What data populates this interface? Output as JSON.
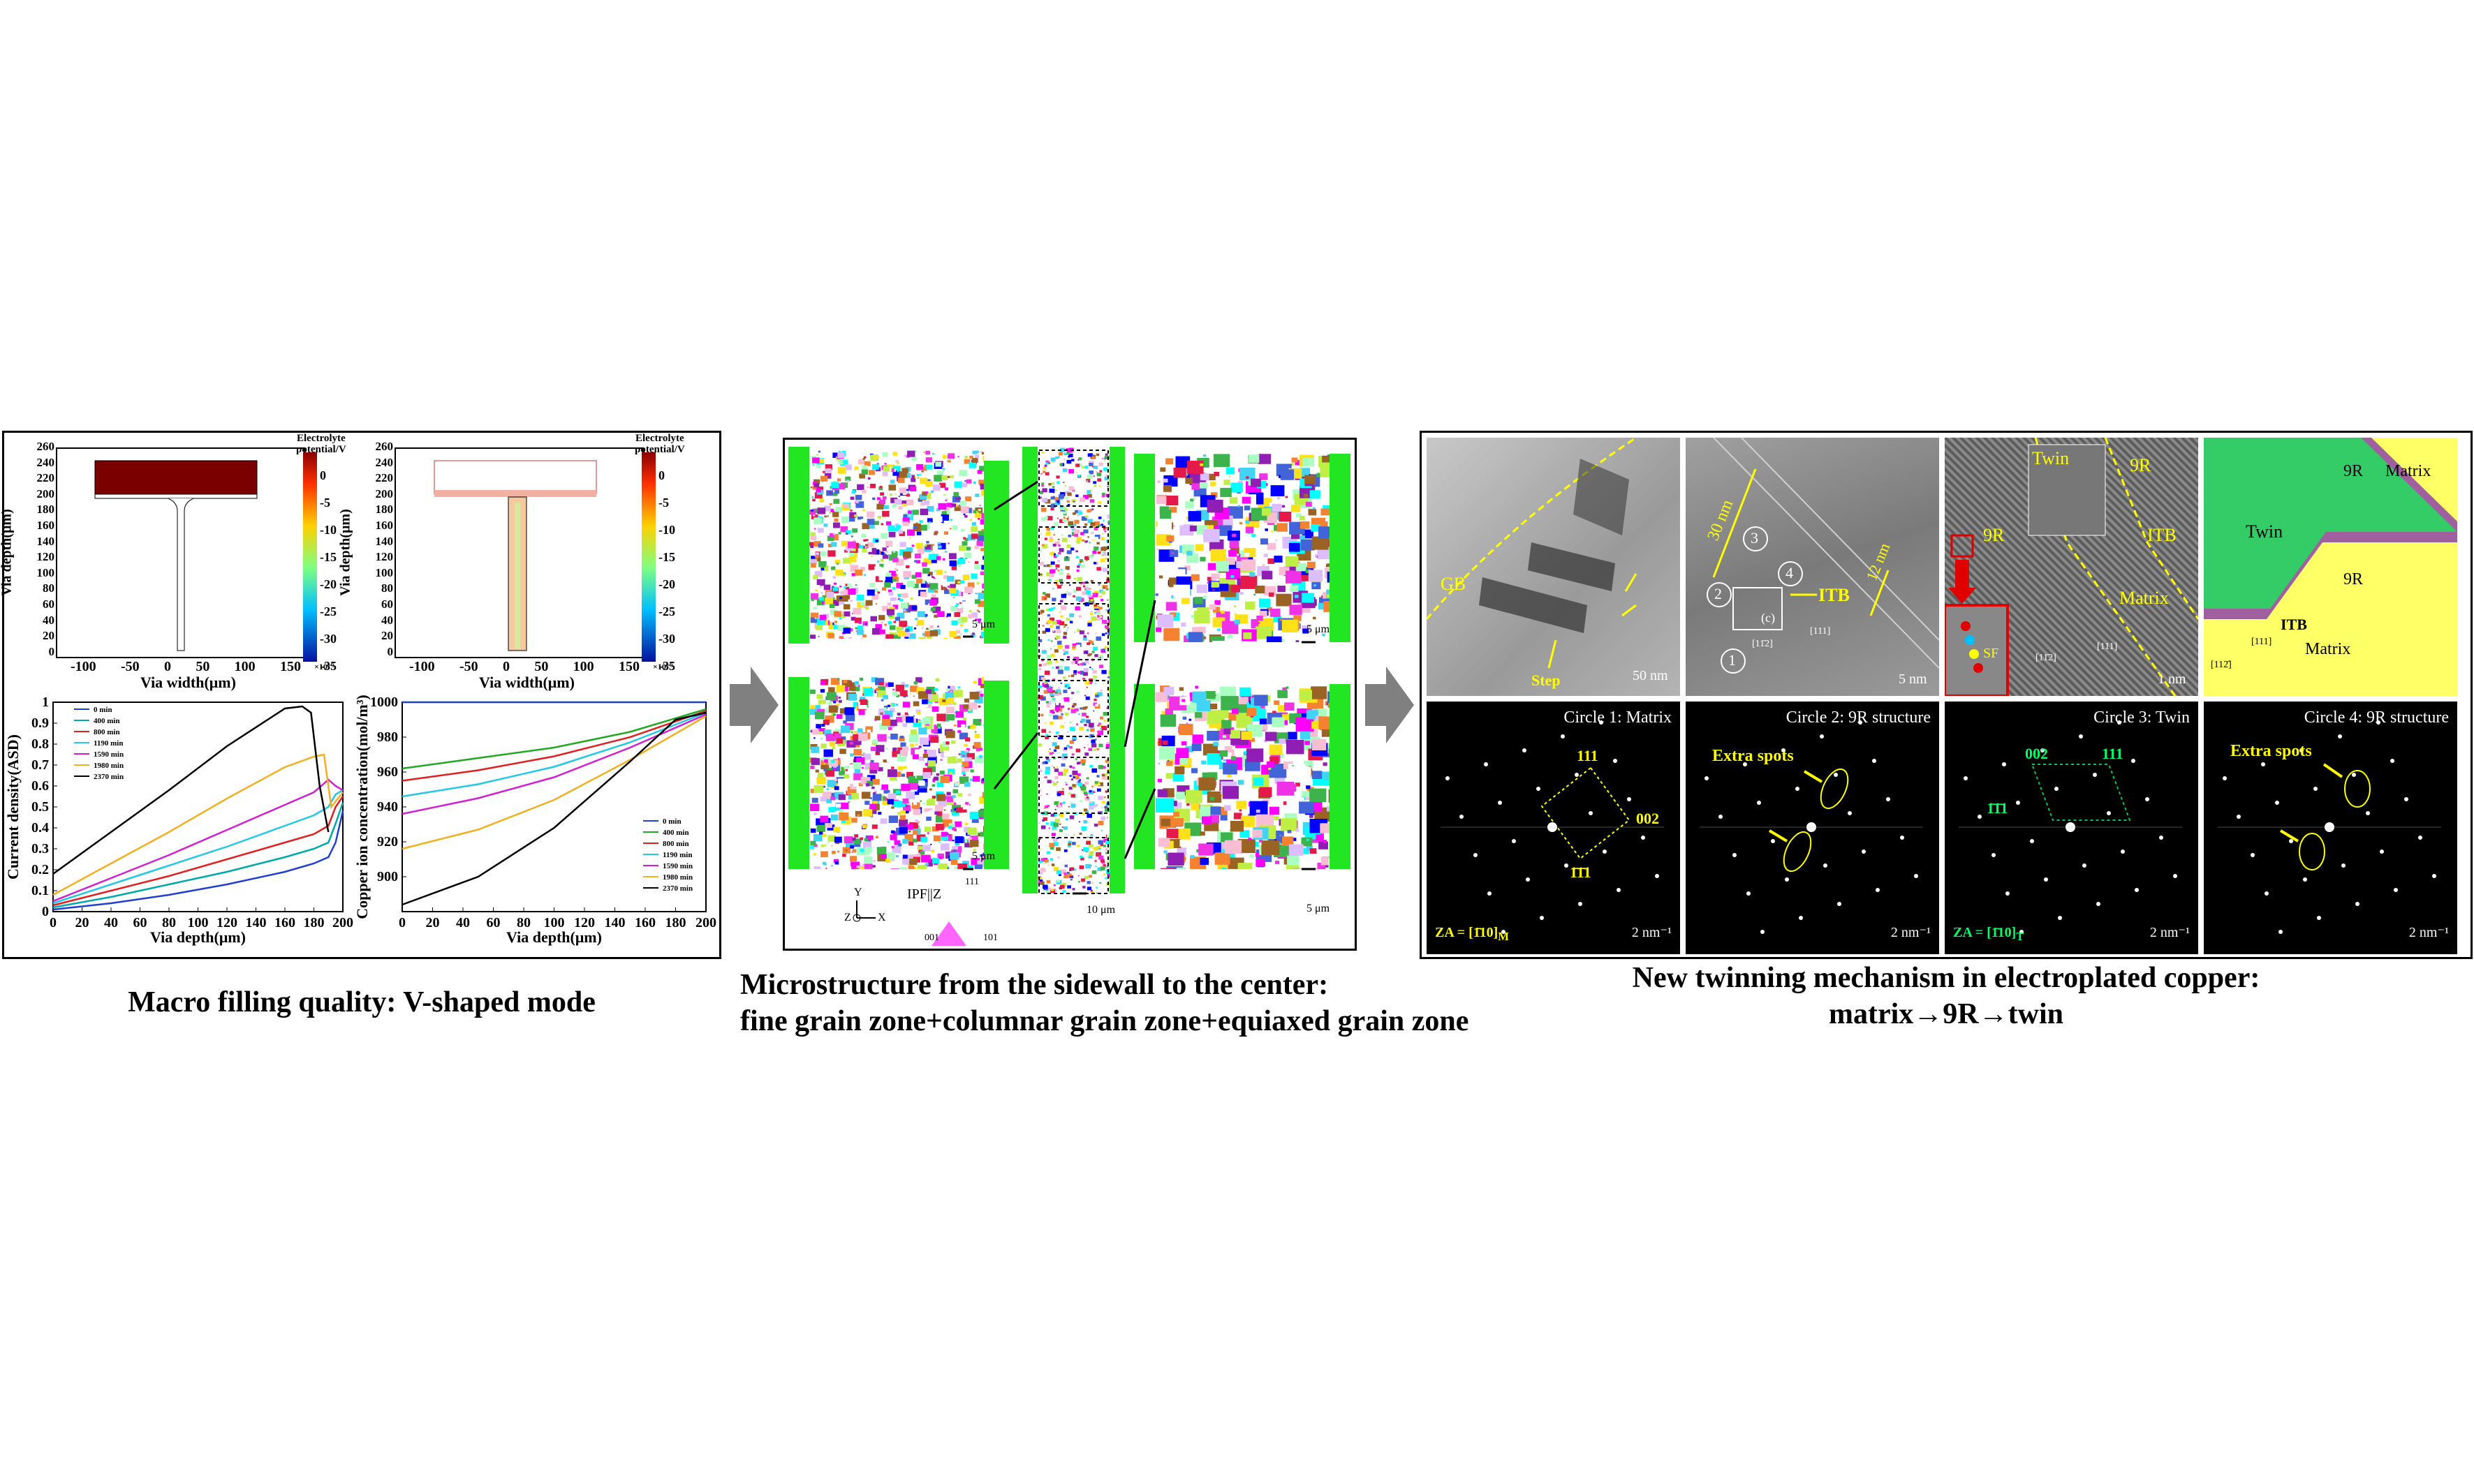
{
  "captions": {
    "left": "Macro filling quality: V-shaped mode",
    "middle_line1": "Microstructure from the sidewall to the center:",
    "middle_line2": "fine grain zone+columnar grain zone+equiaxed grain zone",
    "right_line1": "New twinning mechanism in electroplated copper:",
    "right_line2": "matrix→9R→twin"
  },
  "colors": {
    "arrow_gray": "#808080",
    "ebsd_green": "#22e622",
    "annotation_yellow": "#ffff00",
    "matrix_yellow": "#ffff66",
    "twin_green": "#33cc66",
    "layer_purple": "#a060a0",
    "fft_green": "#00ff66"
  },
  "left_panel": {
    "contour": {
      "colorbar_title_line1": "Electrolyte",
      "colorbar_title_line2": "potential/V",
      "colorbar_ticks": [
        "0",
        "-5",
        "-10",
        "-15",
        "-20",
        "-25",
        "-30",
        "-35"
      ],
      "colorbar_exp": "×10⁻³",
      "ylabel": "Via depth(μm)",
      "xlabel": "Via width(μm)",
      "yticks": [
        "260",
        "240",
        "220",
        "200",
        "180",
        "160",
        "140",
        "120",
        "100",
        "80",
        "60",
        "40",
        "20",
        "0"
      ],
      "xticks_a": [
        "-100",
        "-50",
        "0",
        "50",
        "100",
        "150"
      ],
      "xticks_b": [
        "-100",
        "-50",
        "0",
        "50",
        "100",
        "150"
      ]
    },
    "chart_data": [
      {
        "type": "line",
        "title": "",
        "xlabel": "Via depth(μm)",
        "ylabel": "Current density(ASD)",
        "xlim": [
          0,
          200
        ],
        "ylim": [
          0,
          1
        ],
        "xticks": [
          "0",
          "20",
          "40",
          "60",
          "80",
          "100",
          "120",
          "140",
          "160",
          "180",
          "200"
        ],
        "yticks": [
          "0",
          "0.1",
          "0.2",
          "0.3",
          "0.4",
          "0.5",
          "0.6",
          "0.7",
          "0.8",
          "0.9",
          "1"
        ],
        "legend_position": "top-left",
        "series": [
          {
            "name": "0 min",
            "color": "#1f3fd0",
            "x": [
              0,
              40,
              80,
              120,
              160,
              180,
              190,
              195,
              200
            ],
            "y": [
              0.01,
              0.04,
              0.08,
              0.13,
              0.19,
              0.23,
              0.26,
              0.33,
              0.48
            ]
          },
          {
            "name": "400 min",
            "color": "#00a8a8",
            "x": [
              0,
              40,
              80,
              120,
              160,
              180,
              190,
              195,
              200
            ],
            "y": [
              0.02,
              0.07,
              0.13,
              0.19,
              0.26,
              0.3,
              0.33,
              0.42,
              0.52
            ]
          },
          {
            "name": "800 min",
            "color": "#e02020",
            "x": [
              0,
              40,
              80,
              120,
              160,
              180,
              190,
              195,
              200
            ],
            "y": [
              0.03,
              0.1,
              0.17,
              0.25,
              0.33,
              0.37,
              0.41,
              0.5,
              0.55
            ]
          },
          {
            "name": "1190 min",
            "color": "#22c8e6",
            "x": [
              0,
              40,
              80,
              120,
              160,
              180,
              190,
              195,
              200
            ],
            "y": [
              0.04,
              0.13,
              0.22,
              0.31,
              0.41,
              0.46,
              0.5,
              0.56,
              0.58
            ]
          },
          {
            "name": "1590 min",
            "color": "#d020d0",
            "x": [
              0,
              40,
              80,
              120,
              160,
              180,
              190,
              195,
              200
            ],
            "y": [
              0.05,
              0.16,
              0.27,
              0.39,
              0.51,
              0.57,
              0.63,
              0.6,
              0.58
            ]
          },
          {
            "name": "1980 min",
            "color": "#f0b020",
            "x": [
              0,
              40,
              80,
              120,
              160,
              180,
              187,
              192,
              200
            ],
            "y": [
              0.08,
              0.23,
              0.38,
              0.54,
              0.69,
              0.74,
              0.75,
              0.5,
              0.57
            ]
          },
          {
            "name": "2370 min",
            "color": "#000000",
            "x": [
              0,
              40,
              80,
              120,
              160,
              172,
              178,
              184,
              190
            ],
            "y": [
              0.18,
              0.38,
              0.58,
              0.79,
              0.97,
              0.98,
              0.95,
              0.6,
              0.38
            ]
          }
        ]
      },
      {
        "type": "line",
        "title": "",
        "xlabel": "Via depth(μm)",
        "ylabel": "Copper ion concentration(mol/m³)",
        "xlim": [
          0,
          200
        ],
        "ylim": [
          880,
          1000
        ],
        "xticks": [
          "0",
          "20",
          "40",
          "60",
          "80",
          "100",
          "120",
          "140",
          "160",
          "180",
          "200"
        ],
        "yticks": [
          "900",
          "920",
          "940",
          "960",
          "980",
          "1000"
        ],
        "legend_position": "bottom-right",
        "series": [
          {
            "name": "0 min",
            "color": "#1f3fd0",
            "x": [
              0,
              50,
              100,
              150,
              200
            ],
            "y": [
              1000,
              1000,
              1000,
              1000,
              1000
            ]
          },
          {
            "name": "400 min",
            "color": "#22a822",
            "x": [
              0,
              50,
              100,
              150,
              200
            ],
            "y": [
              962,
              968,
              974,
              983,
              996
            ]
          },
          {
            "name": "800 min",
            "color": "#e02020",
            "x": [
              0,
              50,
              100,
              150,
              200
            ],
            "y": [
              955,
              961,
              969,
              980,
              995
            ]
          },
          {
            "name": "1190 min",
            "color": "#22c8e6",
            "x": [
              0,
              50,
              100,
              150,
              200
            ],
            "y": [
              946,
              953,
              963,
              977,
              994
            ]
          },
          {
            "name": "1590 min",
            "color": "#d020d0",
            "x": [
              0,
              50,
              100,
              150,
              200
            ],
            "y": [
              936,
              945,
              957,
              974,
              993
            ]
          },
          {
            "name": "1980 min",
            "color": "#f0b020",
            "x": [
              0,
              50,
              100,
              150,
              200
            ],
            "y": [
              916,
              927,
              944,
              967,
              992
            ]
          },
          {
            "name": "2370 min",
            "color": "#000000",
            "x": [
              0,
              50,
              100,
              150,
              180,
              200
            ],
            "y": [
              884,
              900,
              928,
              966,
              990,
              994
            ]
          }
        ]
      }
    ]
  },
  "middle_panel": {
    "scale_5um": "5 μm",
    "scale_10um": "10 μm",
    "ipf_label": "IPF||Z",
    "ipf_111": "111",
    "ipf_001": "001",
    "ipf_101": "101",
    "axis_y": "Y",
    "axis_z": "Z",
    "axis_x": "X"
  },
  "right_panel": {
    "tem1": {
      "gb": "GB",
      "step": "Step",
      "scale": "50 nm"
    },
    "tem2": {
      "len30": "30 nm",
      "len12": "12 nm",
      "itb": "ITB",
      "c1": "1",
      "c2": "2",
      "c3": "3",
      "c4": "4",
      "box": "(c)",
      "dir1": "[11̄2]",
      "dir2": "[111]",
      "scale": "5 nm"
    },
    "tem3": {
      "twin": "Twin",
      "r9a": "9R",
      "r9b": "9R",
      "itb": "ITB",
      "matrix": "Matrix",
      "sf": "SF",
      "dir1": "[11̄2]",
      "dir2": "[111]",
      "scale": "1 nm"
    },
    "schem": {
      "r9a": "9R",
      "matrix_top": "Matrix",
      "twin": "Twin",
      "r9b": "9R",
      "itb": "ITB",
      "matrix_bottom": "Matrix",
      "dir1": "[111]",
      "dir2": "[112̄]"
    },
    "fft1": {
      "title": "Circle 1: Matrix",
      "s111": "111",
      "s002": "002",
      "s1b1": "1̄1̄1",
      "za": "ZA = [1̄10]",
      "za_sub": "M",
      "scale": "2 nm⁻¹"
    },
    "fft2": {
      "title": "Circle 2: 9R structure",
      "extra": "Extra spots",
      "scale": "2 nm⁻¹"
    },
    "fft3": {
      "title": "Circle 3: Twin",
      "s002": "002",
      "s111": "111",
      "s1b1": "1̄1̄1",
      "za": "ZA = [1̄10]",
      "za_sub": "T",
      "scale": "2 nm⁻¹"
    },
    "fft4": {
      "title": "Circle 4: 9R structure",
      "extra": "Extra spots",
      "scale": "2 nm⁻¹"
    }
  }
}
